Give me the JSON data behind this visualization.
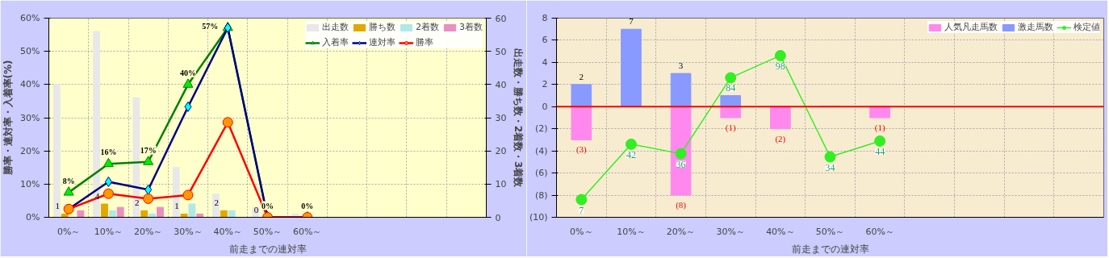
{
  "chart_data": [
    {
      "type": "bar",
      "categories": [
        "0%～",
        "10%～",
        "20%～",
        "30%～",
        "40%～",
        "50%～",
        "60%～",
        null,
        null,
        null,
        null
      ],
      "xlabel": "前走までの連対率",
      "ylabel": "勝率・連対率・入着率(%)",
      "y2label": "出走数・勝ち数・2着数・3着数",
      "ylim": [
        0,
        60
      ],
      "yticks": [
        {
          "value": 0,
          "label": "0%"
        },
        {
          "value": 10,
          "label": "10%"
        },
        {
          "value": 20,
          "label": "20%"
        },
        {
          "value": 30,
          "label": "30%"
        },
        {
          "value": 40,
          "label": "40%"
        },
        {
          "value": 50,
          "label": "50%"
        },
        {
          "value": 60,
          "label": "60%"
        }
      ],
      "y2lim": [
        0,
        60
      ],
      "y2ticks": [
        0,
        10,
        20,
        30,
        40,
        50,
        60
      ],
      "grid": true,
      "legend": "top right",
      "series": [
        {
          "name": "出走数",
          "color": "#e8e8e8",
          "axis": "y2",
          "values": [
            40,
            56,
            36,
            15,
            7,
            3,
            1,
            null,
            null,
            null,
            null
          ]
        },
        {
          "name": "勝ち数",
          "color": "#e0a800",
          "axis": "y2",
          "values": [
            1,
            4,
            2,
            1,
            2,
            0,
            0,
            null,
            null,
            null,
            null
          ],
          "value_labels": [
            "1",
            "4",
            "2",
            "1",
            "2",
            "0",
            null,
            null,
            null,
            null,
            null
          ]
        },
        {
          "name": "2着数",
          "color": "#b0e8e8",
          "axis": "y2",
          "values": [
            0,
            2,
            1,
            4,
            2,
            0,
            0,
            null,
            null,
            null,
            null
          ]
        },
        {
          "name": "3着数",
          "color": "#e890c0",
          "axis": "y2",
          "values": [
            2,
            3,
            3,
            1,
            0,
            0,
            0,
            null,
            null,
            null,
            null
          ]
        },
        {
          "name": "入着率",
          "type": "line",
          "marker": "triangle",
          "color": "#008000",
          "values": [
            7.5,
            16.1,
            16.7,
            40,
            57.1,
            0,
            0,
            null,
            null,
            null,
            null
          ],
          "value_labels": [
            "8%",
            "16%",
            "17%",
            "40%",
            "57%",
            "0%",
            "0%",
            null,
            null,
            null,
            null
          ]
        },
        {
          "name": "連対率",
          "type": "line",
          "marker": "diamond",
          "color": "#000080",
          "values": [
            2.5,
            10.7,
            8.3,
            33.3,
            57.1,
            0,
            0,
            null,
            null,
            null,
            null
          ]
        },
        {
          "name": "勝率",
          "type": "line",
          "marker": "circle",
          "color": "#ff0000",
          "values": [
            2.5,
            7.1,
            5.6,
            6.7,
            28.6,
            0,
            0,
            null,
            null,
            null,
            null
          ]
        }
      ]
    },
    {
      "type": "bar",
      "stacked": true,
      "categories": [
        "0%～",
        "10%～",
        "20%～",
        "30%～",
        "40%～",
        "50%～",
        "60%～",
        null,
        null,
        null,
        null
      ],
      "xlabel": "前走までの連対率",
      "ylim": [
        -10,
        8
      ],
      "yticks": [
        {
          "value": -10,
          "label": "(10)"
        },
        {
          "value": -8,
          "label": "(8)"
        },
        {
          "value": -6,
          "label": "(6)"
        },
        {
          "value": -4,
          "label": "(4)"
        },
        {
          "value": -2,
          "label": "(2)"
        },
        0,
        2,
        4,
        6,
        8
      ],
      "grid": true,
      "legend": "top right",
      "ref_lines": [
        {
          "axis": "y",
          "value": 0,
          "color": "#ff0000"
        }
      ],
      "series": [
        {
          "name": "人気凡走馬数",
          "color": "#ff88ee",
          "values": [
            -3,
            0,
            -8,
            -1,
            -2,
            0,
            -1,
            null,
            null,
            null,
            null
          ],
          "value_labels": [
            "(3)",
            null,
            "(8)",
            "(1)",
            "(2)",
            null,
            "(1)",
            null,
            null,
            null,
            null
          ]
        },
        {
          "name": "激走馬数",
          "color": "#8899ff",
          "values": [
            2,
            7,
            3,
            1,
            0,
            0,
            0,
            null,
            null,
            null,
            null
          ],
          "value_labels": [
            "2",
            "7",
            "3",
            null,
            null,
            null,
            null,
            null,
            null,
            null,
            null
          ]
        },
        {
          "name": "検定値",
          "type": "line",
          "marker": "circle",
          "color": "#33ee22",
          "axis": "y2",
          "values": [
            7,
            42,
            36,
            84,
            98,
            34,
            44,
            null,
            null,
            null,
            null
          ],
          "value_labels": [
            "7",
            "42",
            "36",
            "84",
            "98",
            "34",
            "44",
            null,
            null,
            null,
            null
          ]
        }
      ]
    }
  ]
}
